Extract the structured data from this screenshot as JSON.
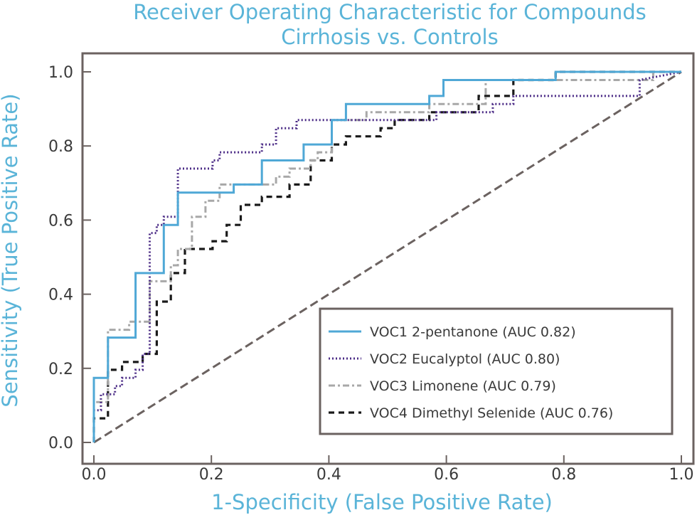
{
  "chart_data": {
    "type": "line",
    "title_line1": "Receiver Operating Characteristic for Compounds",
    "title_line2": "Cirrhosis vs. Controls",
    "xlabel": "1-Specificity (False Positive Rate)",
    "ylabel": "Sensitivity (True Positive Rate)",
    "xlim": [
      0,
      1
    ],
    "ylim": [
      0,
      1
    ],
    "xticks": [
      0,
      0.2,
      0.4,
      0.6,
      0.8,
      1.0
    ],
    "xtick_labels": [
      "0.0",
      "0.2",
      "0.4",
      "0.6",
      "0.8",
      "1.0"
    ],
    "yticks": [
      0,
      0.2,
      0.4,
      0.6,
      0.8,
      1.0
    ],
    "ytick_labels": [
      "0.0",
      "0.2",
      "0.4",
      "0.6",
      "0.8",
      "1.0"
    ],
    "legend_position": "lower-right",
    "series": [
      {
        "name": "VOC1 2-pentanone (AUC 0.82)",
        "color": "#4fa8d6",
        "style": "solid",
        "x": [
          0,
          0,
          0.024,
          0.024,
          0.071,
          0.071,
          0.119,
          0.119,
          0.143,
          0.143,
          0.238,
          0.238,
          0.286,
          0.286,
          0.357,
          0.357,
          0.405,
          0.405,
          0.429,
          0.429,
          0.571,
          0.571,
          0.595,
          0.595,
          0.786,
          0.786,
          1.0
        ],
        "y": [
          0,
          0.174,
          0.174,
          0.283,
          0.283,
          0.457,
          0.457,
          0.587,
          0.587,
          0.674,
          0.674,
          0.696,
          0.696,
          0.761,
          0.761,
          0.804,
          0.804,
          0.87,
          0.87,
          0.913,
          0.913,
          0.935,
          0.935,
          0.978,
          0.978,
          1.0,
          1.0
        ]
      },
      {
        "name": "VOC2 Eucalyptol (AUC 0.80)",
        "color": "#4b2b86",
        "style": "dotted",
        "x": [
          0,
          0,
          0.012,
          0.012,
          0.024,
          0.024,
          0.036,
          0.036,
          0.048,
          0.048,
          0.071,
          0.071,
          0.083,
          0.083,
          0.095,
          0.095,
          0.107,
          0.107,
          0.119,
          0.119,
          0.143,
          0.143,
          0.202,
          0.202,
          0.214,
          0.214,
          0.286,
          0.286,
          0.31,
          0.31,
          0.345,
          0.345,
          0.369,
          0.369,
          0.393,
          0.393,
          0.583,
          0.583,
          0.679,
          0.679,
          0.714,
          0.714,
          0.929,
          0.929,
          1.0
        ],
        "y": [
          0,
          0.087,
          0.087,
          0.13,
          0.13,
          0.13,
          0.13,
          0.152,
          0.152,
          0.174,
          0.174,
          0.196,
          0.196,
          0.239,
          0.239,
          0.565,
          0.565,
          0.587,
          0.587,
          0.609,
          0.609,
          0.739,
          0.739,
          0.761,
          0.761,
          0.783,
          0.783,
          0.804,
          0.804,
          0.848,
          0.848,
          0.87,
          0.87,
          0.87,
          0.87,
          0.87,
          0.87,
          0.891,
          0.891,
          0.913,
          0.913,
          0.935,
          0.935,
          0.978,
          1.0
        ]
      },
      {
        "name": "VOC3 Limonene (AUC 0.79)",
        "color": "#a8a8a8",
        "style": "dashdot",
        "x": [
          0,
          0,
          0.024,
          0.024,
          0.06,
          0.06,
          0.095,
          0.095,
          0.131,
          0.131,
          0.143,
          0.143,
          0.167,
          0.167,
          0.19,
          0.19,
          0.214,
          0.214,
          0.262,
          0.262,
          0.31,
          0.31,
          0.333,
          0.333,
          0.369,
          0.369,
          0.381,
          0.381,
          0.405,
          0.405,
          0.452,
          0.452,
          0.464,
          0.464,
          0.571,
          0.571,
          0.607,
          0.607,
          0.667,
          0.667,
          0.786,
          0.786,
          0.952,
          0.952,
          1.0
        ],
        "y": [
          0,
          0.109,
          0.109,
          0.304,
          0.304,
          0.326,
          0.326,
          0.435,
          0.435,
          0.478,
          0.478,
          0.522,
          0.522,
          0.609,
          0.609,
          0.652,
          0.652,
          0.696,
          0.696,
          0.696,
          0.696,
          0.717,
          0.717,
          0.739,
          0.739,
          0.761,
          0.761,
          0.783,
          0.783,
          0.87,
          0.87,
          0.87,
          0.87,
          0.891,
          0.891,
          0.913,
          0.913,
          0.913,
          0.913,
          0.978,
          0.978,
          0.978,
          0.978,
          1.0,
          1.0
        ]
      },
      {
        "name": "VOC4 Dimethyl Selenide (AUC 0.76)",
        "color": "#1a1a1a",
        "style": "dashed",
        "x": [
          0,
          0,
          0.024,
          0.024,
          0.048,
          0.048,
          0.083,
          0.083,
          0.107,
          0.107,
          0.131,
          0.131,
          0.155,
          0.155,
          0.202,
          0.202,
          0.226,
          0.226,
          0.25,
          0.25,
          0.286,
          0.286,
          0.333,
          0.333,
          0.369,
          0.369,
          0.405,
          0.405,
          0.429,
          0.429,
          0.476,
          0.476,
          0.488,
          0.488,
          0.512,
          0.512,
          0.536,
          0.536,
          0.571,
          0.571,
          0.655,
          0.655,
          0.714,
          0.714,
          0.738,
          0.738,
          0.786,
          0.786,
          0.81,
          0.81,
          1.0
        ],
        "y": [
          0,
          0.065,
          0.065,
          0.196,
          0.196,
          0.217,
          0.217,
          0.239,
          0.239,
          0.38,
          0.38,
          0.457,
          0.457,
          0.522,
          0.522,
          0.543,
          0.543,
          0.587,
          0.587,
          0.641,
          0.641,
          0.663,
          0.663,
          0.696,
          0.696,
          0.761,
          0.761,
          0.804,
          0.804,
          0.826,
          0.826,
          0.826,
          0.826,
          0.848,
          0.848,
          0.87,
          0.87,
          0.87,
          0.87,
          0.891,
          0.891,
          0.935,
          0.935,
          0.978,
          0.978,
          0.978,
          0.978,
          1.0,
          1.0,
          1.0,
          1.0
        ]
      },
      {
        "name": "reference-diagonal",
        "color": "#6b6260",
        "style": "dashed-long",
        "x": [
          0,
          1
        ],
        "y": [
          0,
          1
        ]
      }
    ]
  }
}
